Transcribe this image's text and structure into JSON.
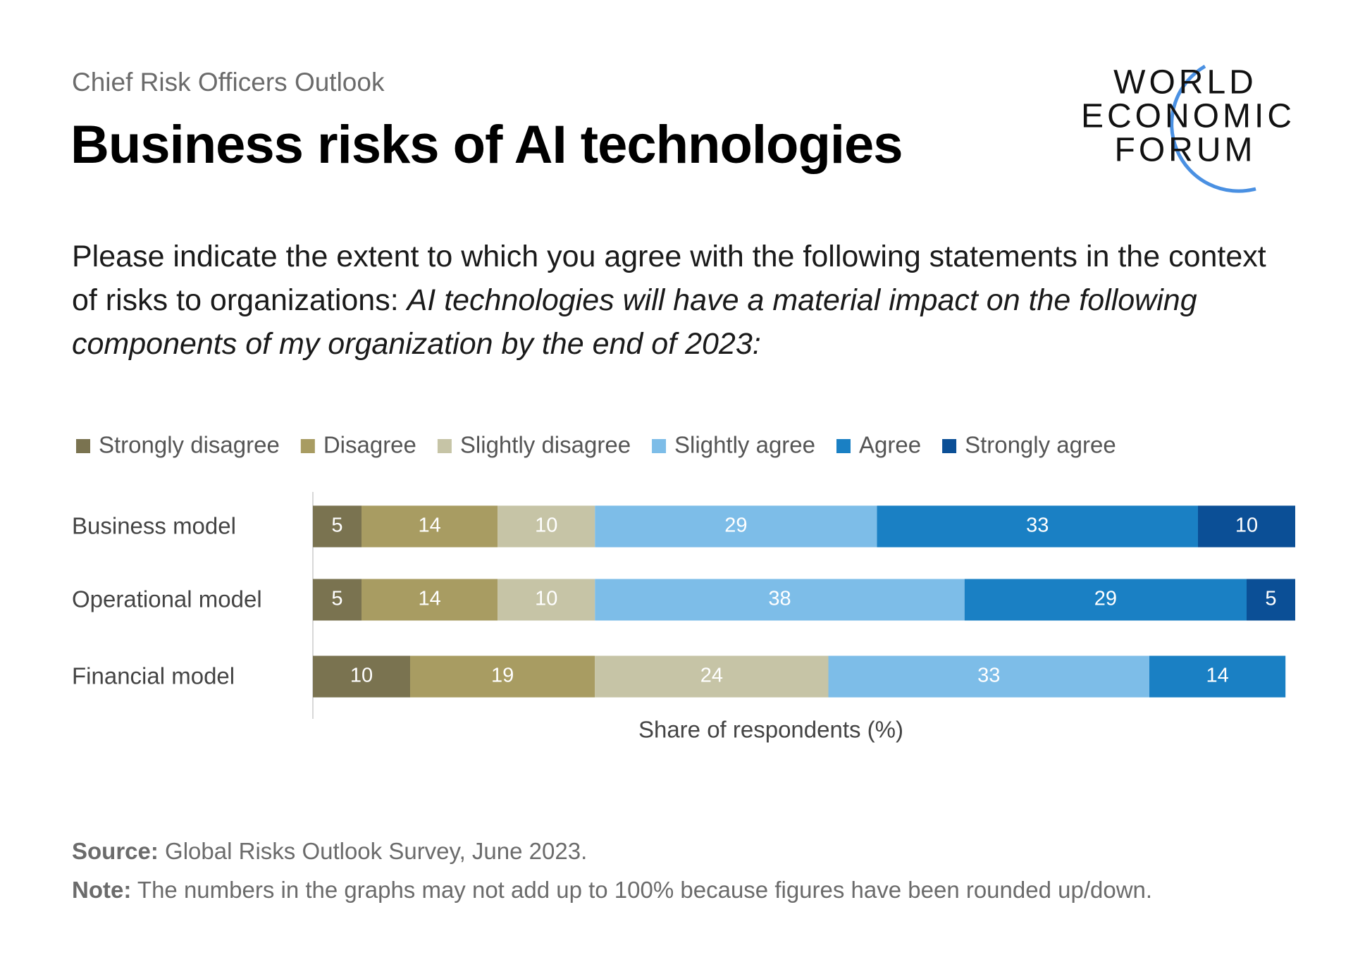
{
  "header": {
    "supertitle": "Chief Risk Officers Outlook",
    "logo": [
      "WORLD",
      "ECONOMIC",
      "FORUM"
    ]
  },
  "chart_data": {
    "type": "stacked_bar_horizontal",
    "title": "Business risks of AI technologies",
    "subtitle": "Please indicate the extent to which you agree with the following statements in the context of risks to organizations:",
    "subtitle_italic": "AI technologies will have a material impact on the following components of my organization by the end of 2023:",
    "xlabel": "Share of respondents (%)",
    "categories": [
      "Business model",
      "Operational model",
      "Financial model"
    ],
    "series": [
      {
        "name": "Strongly disagree",
        "color": "#7a7350",
        "values": [
          5,
          5,
          10
        ]
      },
      {
        "name": "Disagree",
        "color": "#a89c62",
        "values": [
          14,
          14,
          19
        ]
      },
      {
        "name": "Slightly disagree",
        "color": "#c6c4a6",
        "values": [
          10,
          10,
          24
        ]
      },
      {
        "name": "Slightly agree",
        "color": "#7dbde8",
        "values": [
          29,
          38,
          33
        ]
      },
      {
        "name": "Agree",
        "color": "#1a80c4",
        "values": [
          33,
          29,
          14
        ]
      },
      {
        "name": "Strongly agree",
        "color": "#0b4f96",
        "values": [
          10,
          5,
          null
        ]
      }
    ],
    "legend": "top"
  },
  "footer": {
    "source_label": "Source:",
    "source": "Global Risks Outlook Survey, June 2023.",
    "note_label": "Note:",
    "note": "The numbers in the graphs may not add up to 100% because figures have been rounded up/down."
  }
}
